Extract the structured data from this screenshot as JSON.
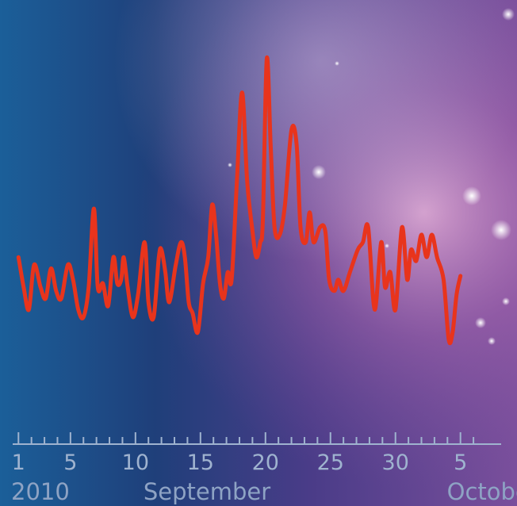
{
  "chart_data": {
    "type": "line",
    "title": "",
    "xlabel": "",
    "ylabel": "",
    "x_unit": "day",
    "year_label": "2010",
    "month_labels": [
      {
        "label": "September",
        "anchor_day": 15.5
      },
      {
        "label": "October",
        "anchor_day": 37.5
      }
    ],
    "tick_labels": [
      {
        "label": "1",
        "day": 1
      },
      {
        "label": "5",
        "day": 5
      },
      {
        "label": "10",
        "day": 10
      },
      {
        "label": "15",
        "day": 15
      },
      {
        "label": "20",
        "day": 20
      },
      {
        "label": "25",
        "day": 25
      },
      {
        "label": "30",
        "day": 30
      },
      {
        "label": "5",
        "day": 35
      }
    ],
    "xlim": [
      0.8,
      36.3
    ],
    "ylim": [
      0,
      100
    ],
    "grid": false,
    "line_color": "#e8341c",
    "axis_color": "#9fb3cf",
    "series": [
      {
        "name": "",
        "values": [
          [
            1.0,
            44
          ],
          [
            1.4,
            36
          ],
          [
            1.8,
            30
          ],
          [
            2.2,
            42
          ],
          [
            2.7,
            36
          ],
          [
            3.1,
            33
          ],
          [
            3.5,
            41
          ],
          [
            3.9,
            35
          ],
          [
            4.3,
            33
          ],
          [
            4.8,
            42
          ],
          [
            5.2,
            38
          ],
          [
            5.6,
            30
          ],
          [
            6.0,
            28
          ],
          [
            6.4,
            36
          ],
          [
            6.8,
            57
          ],
          [
            7.1,
            36
          ],
          [
            7.5,
            37
          ],
          [
            7.9,
            31
          ],
          [
            8.3,
            44
          ],
          [
            8.6,
            37
          ],
          [
            8.9,
            38
          ],
          [
            9.1,
            44
          ],
          [
            9.4,
            36
          ],
          [
            9.8,
            28
          ],
          [
            10.2,
            34
          ],
          [
            10.7,
            48
          ],
          [
            11.0,
            32
          ],
          [
            11.4,
            28
          ],
          [
            11.8,
            44
          ],
          [
            12.0,
            46
          ],
          [
            12.3,
            40
          ],
          [
            12.6,
            32
          ],
          [
            13.1,
            42
          ],
          [
            13.5,
            48
          ],
          [
            13.8,
            44
          ],
          [
            14.1,
            32
          ],
          [
            14.4,
            29
          ],
          [
            14.8,
            24
          ],
          [
            15.2,
            37
          ],
          [
            15.6,
            44
          ],
          [
            15.9,
            58
          ],
          [
            16.2,
            50
          ],
          [
            16.5,
            37
          ],
          [
            16.8,
            33
          ],
          [
            17.1,
            40
          ],
          [
            17.4,
            38
          ],
          [
            17.8,
            64
          ],
          [
            18.2,
            88
          ],
          [
            18.6,
            64
          ],
          [
            19.0,
            51
          ],
          [
            19.3,
            44
          ],
          [
            19.6,
            48
          ],
          [
            19.8,
            54
          ],
          [
            20.1,
            97
          ],
          [
            20.4,
            74
          ],
          [
            20.7,
            52
          ],
          [
            21.1,
            50
          ],
          [
            21.5,
            58
          ],
          [
            22.0,
            78
          ],
          [
            22.4,
            74
          ],
          [
            22.7,
            52
          ],
          [
            23.1,
            48
          ],
          [
            23.4,
            56
          ],
          [
            23.7,
            48
          ],
          [
            24.2,
            52
          ],
          [
            24.6,
            51
          ],
          [
            24.9,
            38
          ],
          [
            25.3,
            35
          ],
          [
            25.6,
            38
          ],
          [
            26.0,
            35
          ],
          [
            26.5,
            40
          ],
          [
            27.1,
            46
          ],
          [
            27.5,
            48
          ],
          [
            27.9,
            52
          ],
          [
            28.4,
            30
          ],
          [
            28.9,
            48
          ],
          [
            29.2,
            36
          ],
          [
            29.6,
            40
          ],
          [
            30.0,
            30
          ],
          [
            30.5,
            52
          ],
          [
            30.9,
            38
          ],
          [
            31.2,
            46
          ],
          [
            31.6,
            43
          ],
          [
            32.0,
            50
          ],
          [
            32.4,
            44
          ],
          [
            32.8,
            50
          ],
          [
            33.2,
            44
          ],
          [
            33.7,
            38
          ],
          [
            34.1,
            22
          ],
          [
            34.4,
            24
          ],
          [
            34.7,
            34
          ],
          [
            35.0,
            39
          ]
        ]
      }
    ]
  }
}
